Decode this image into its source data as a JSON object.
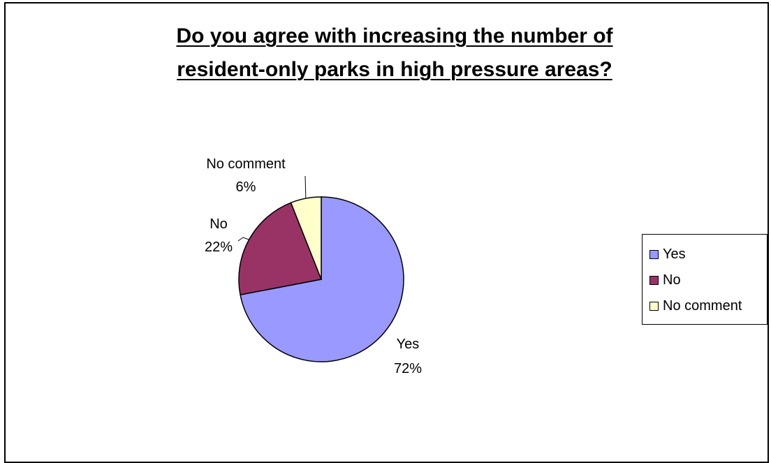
{
  "chart_data": {
    "type": "pie",
    "title_lines": [
      "Do you agree with increasing the number of ",
      "resident-only parks in high pressure areas?"
    ],
    "categories": [
      "Yes",
      "No",
      "No comment"
    ],
    "values": [
      72,
      22,
      6
    ],
    "value_labels": [
      "72%",
      "22%",
      "6%"
    ],
    "colors": [
      "#9999FF",
      "#993366",
      "#FFFFCC"
    ],
    "legend_position": "right"
  }
}
